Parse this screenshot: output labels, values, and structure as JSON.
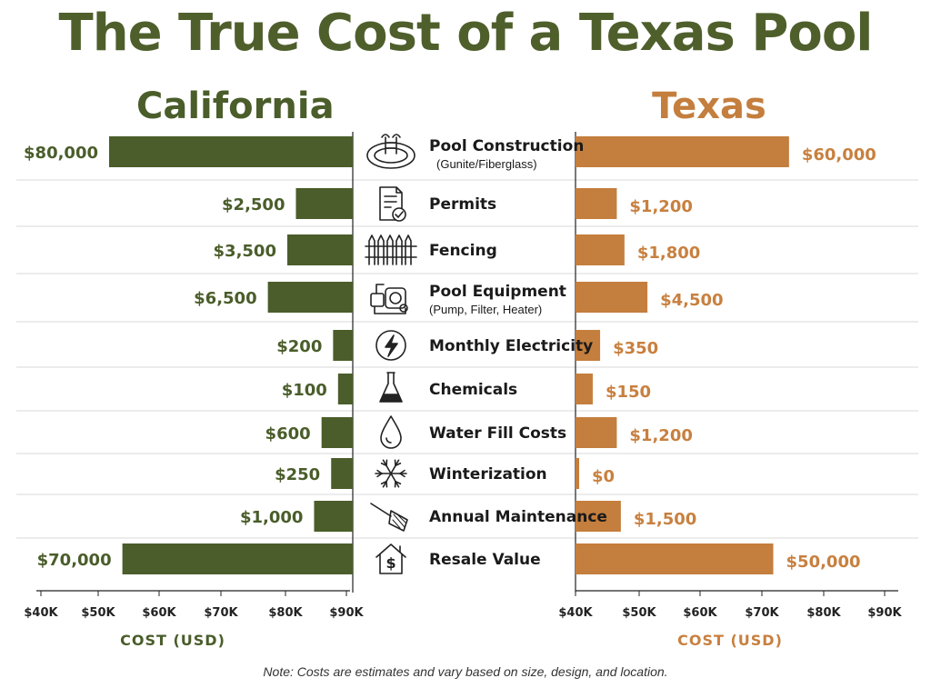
{
  "title": "The True Cost of a Texas Pool",
  "note": "Note: Costs are estimates and vary based on size, design, and location.",
  "colors": {
    "california": "#4a5d2a",
    "texas": "#c47e3d",
    "title": "#4f5f2c"
  },
  "chart_data": [
    {
      "type": "bar",
      "title": "California",
      "xlabel": "COST (USD)",
      "x_ticks": [
        "$40K",
        "$50K",
        "$60K",
        "$70K",
        "$80K",
        "$90K"
      ],
      "orientation": "horizontal-reversed",
      "categories": [
        {
          "label": "Pool Construction",
          "sublabel": "(Gunite/Fiberglass)",
          "icon": "pool-icon"
        },
        {
          "label": "Permits",
          "sublabel": "",
          "icon": "document-check-icon"
        },
        {
          "label": "Fencing",
          "sublabel": "",
          "icon": "fence-icon"
        },
        {
          "label": "Pool Equipment",
          "sublabel": "(Pump, Filter, Heater)",
          "icon": "pump-icon"
        },
        {
          "label": "Monthly Electricity",
          "sublabel": "",
          "icon": "lightning-icon"
        },
        {
          "label": "Chemicals",
          "sublabel": "",
          "icon": "flask-icon"
        },
        {
          "label": "Water Fill Costs",
          "sublabel": "",
          "icon": "water-drop-icon"
        },
        {
          "label": "Winterization",
          "sublabel": "",
          "icon": "snowflake-icon"
        },
        {
          "label": "Annual Maintenance",
          "sublabel": "",
          "icon": "skimmer-net-icon"
        },
        {
          "label": "Resale Value",
          "sublabel": "",
          "icon": "house-dollar-icon"
        }
      ],
      "values": [
        80000,
        2500,
        3500,
        6500,
        200,
        100,
        600,
        250,
        1000,
        70000
      ],
      "value_labels": [
        "$80,000",
        "$2,500",
        "$3,500",
        "$6,500",
        "$200",
        "$100",
        "$600",
        "$250",
        "$1,000",
        "$70,000"
      ],
      "grid": false
    },
    {
      "type": "bar",
      "title": "Texas",
      "xlabel": "COST (USD)",
      "x_ticks": [
        "$40K",
        "$50K",
        "$60K",
        "$70K",
        "$80K",
        "$90K"
      ],
      "orientation": "horizontal",
      "values": [
        60000,
        1200,
        1800,
        4500,
        350,
        150,
        1200,
        0,
        1500,
        50000
      ],
      "value_labels": [
        "$60,000",
        "$1,200",
        "$1,800",
        "$4,500",
        "$350",
        "$150",
        "$1,200",
        "$0",
        "$1,500",
        "$50,000"
      ],
      "grid": false
    }
  ]
}
